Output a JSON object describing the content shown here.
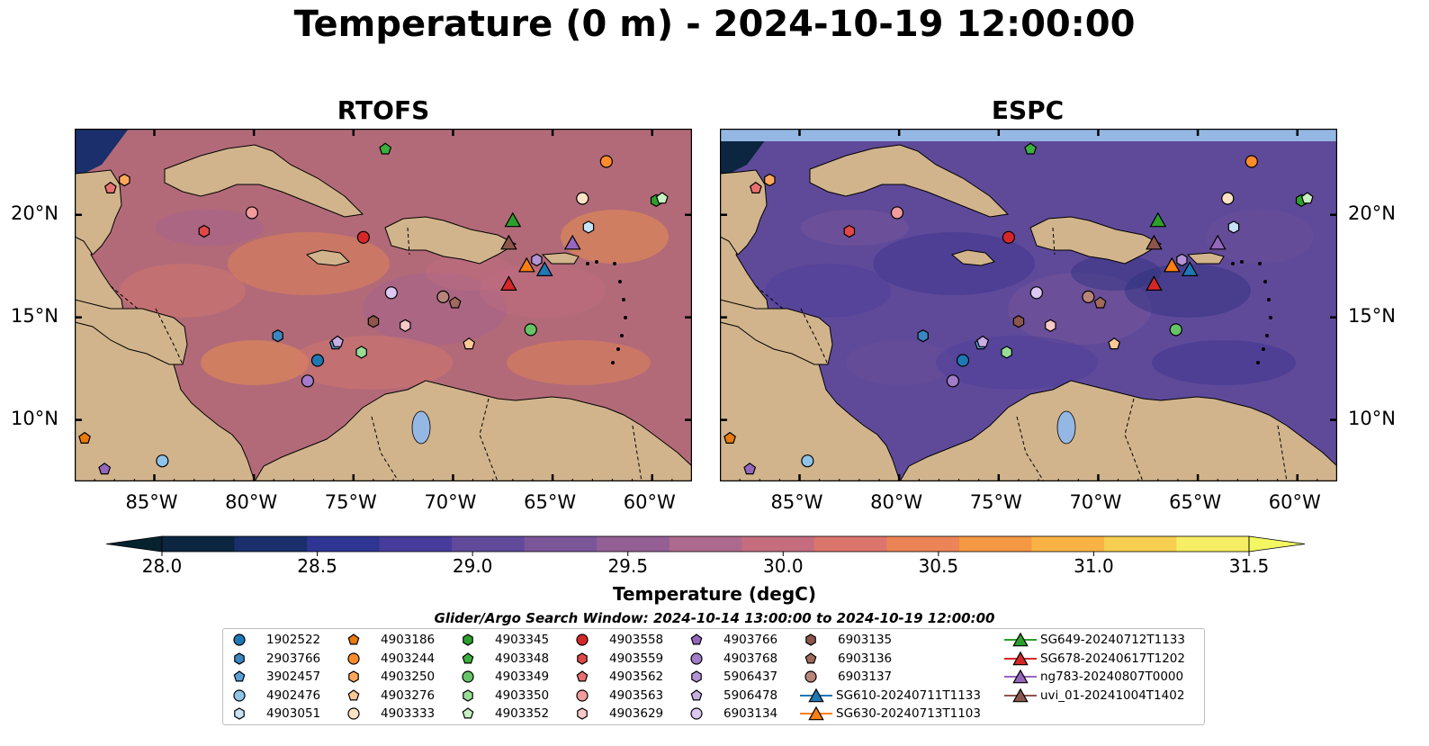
{
  "title": "Temperature (0 m) - 2024-10-19 12:00:00",
  "panels": [
    {
      "title": "RTOFS",
      "ocean_color": "#b26a79",
      "blank_top": false
    },
    {
      "title": "ESPC",
      "ocean_color": "#5f4a9a",
      "blank_top": true
    }
  ],
  "axes": {
    "lon_ticks": [
      "85°W",
      "80°W",
      "75°W",
      "70°W",
      "65°W",
      "60°W"
    ],
    "lat_ticks": [
      "20°N",
      "15°N",
      "10°N"
    ]
  },
  "colorbar": {
    "label": "Temperature (degC)",
    "ticks": [
      "28.0",
      "28.5",
      "29.0",
      "29.5",
      "30.0",
      "30.5",
      "31.0",
      "31.5"
    ],
    "colors": [
      "#0c2540",
      "#1a2f6b",
      "#2f3592",
      "#473c9b",
      "#614a9a",
      "#7a5699",
      "#945f95",
      "#ad6a8c",
      "#c56d7f",
      "#dc766d",
      "#ec8457",
      "#f59843",
      "#f9b344",
      "#f6cf50",
      "#f6ee64"
    ],
    "min_color": "#07222f",
    "max_color": "#f3f762"
  },
  "legend": {
    "title": "Glider/Argo Search Window: 2024-10-14 13:00:00 to 2024-10-19 12:00:00",
    "entries": [
      {
        "label": "1902522",
        "marker": "circle",
        "color": "#1f77b4"
      },
      {
        "label": "2903766",
        "marker": "hexagon",
        "color": "#3b86c0"
      },
      {
        "label": "3902457",
        "marker": "pentagon",
        "color": "#5aa0d8"
      },
      {
        "label": "4902476",
        "marker": "circle",
        "color": "#8fc3ea"
      },
      {
        "label": "4903051",
        "marker": "hexagon",
        "color": "#c6e2f6"
      },
      {
        "label": "4903186",
        "marker": "pentagon",
        "color": "#e87b0c"
      },
      {
        "label": "4903244",
        "marker": "circle",
        "color": "#ff8c2a"
      },
      {
        "label": "4903250",
        "marker": "hexagon",
        "color": "#ffa85c"
      },
      {
        "label": "4903276",
        "marker": "pentagon",
        "color": "#ffc996"
      },
      {
        "label": "4903333",
        "marker": "circle",
        "color": "#ffe2c4"
      },
      {
        "label": "4903345",
        "marker": "hexagon",
        "color": "#2ca02c"
      },
      {
        "label": "4903348",
        "marker": "pentagon",
        "color": "#3cb03c"
      },
      {
        "label": "4903349",
        "marker": "circle",
        "color": "#66c466"
      },
      {
        "label": "4903350",
        "marker": "hexagon",
        "color": "#98dc98"
      },
      {
        "label": "4903352",
        "marker": "pentagon",
        "color": "#c8f0c0"
      },
      {
        "label": "4903558",
        "marker": "circle",
        "color": "#d62728"
      },
      {
        "label": "4903559",
        "marker": "hexagon",
        "color": "#e04848"
      },
      {
        "label": "4903562",
        "marker": "pentagon",
        "color": "#ea7070"
      },
      {
        "label": "4903563",
        "marker": "circle",
        "color": "#f29c9c"
      },
      {
        "label": "4903629",
        "marker": "hexagon",
        "color": "#fbc8c8"
      },
      {
        "label": "4903766",
        "marker": "pentagon",
        "color": "#9467bd"
      },
      {
        "label": "4903768",
        "marker": "circle",
        "color": "#a27cc8"
      },
      {
        "label": "5906437",
        "marker": "hexagon",
        "color": "#b494d4"
      },
      {
        "label": "5906478",
        "marker": "pentagon",
        "color": "#c8aee2"
      },
      {
        "label": "6903134",
        "marker": "circle",
        "color": "#dcc8f0"
      },
      {
        "label": "6903135",
        "marker": "hexagon",
        "color": "#8c564b"
      },
      {
        "label": "6903136",
        "marker": "pentagon",
        "color": "#a06a5c"
      },
      {
        "label": "6903137",
        "marker": "circle",
        "color": "#b8857a"
      },
      {
        "label": "SG610-20240711T1133",
        "marker": "triangle",
        "color": "#1f77b4"
      },
      {
        "label": "SG630-20240713T1103",
        "marker": "triangle",
        "color": "#ff7f0e"
      },
      {
        "label": "SG649-20240712T1133",
        "marker": "triangle",
        "color": "#2ca02c"
      },
      {
        "label": "SG678-20240617T1202",
        "marker": "triangle",
        "color": "#d62728"
      },
      {
        "label": "ng783-20240807T0000",
        "marker": "triangle",
        "color": "#9467bd"
      },
      {
        "label": "uvi_01-20241004T1402",
        "marker": "triangle",
        "color": "#8c564b"
      }
    ]
  },
  "stations": [
    {
      "id": "1902522",
      "lon": -76.8,
      "lat": 12.9
    },
    {
      "id": "2903766",
      "lon": -78.8,
      "lat": 14.1
    },
    {
      "id": "3902457",
      "lon": -75.9,
      "lat": 13.7
    },
    {
      "id": "4902476",
      "lon": -84.6,
      "lat": 8.0
    },
    {
      "id": "4903051",
      "lon": -63.2,
      "lat": 19.4
    },
    {
      "id": "4903186",
      "lon": -88.5,
      "lat": 9.1
    },
    {
      "id": "4903244",
      "lon": -62.3,
      "lat": 22.6
    },
    {
      "id": "4903250",
      "lon": -86.5,
      "lat": 21.7
    },
    {
      "id": "4903276",
      "lon": -69.2,
      "lat": 13.7
    },
    {
      "id": "4903333",
      "lon": -63.5,
      "lat": 20.8
    },
    {
      "id": "4903345",
      "lon": -59.8,
      "lat": 20.7
    },
    {
      "id": "4903348",
      "lon": -73.4,
      "lat": 23.2
    },
    {
      "id": "4903349",
      "lon": -66.1,
      "lat": 14.4
    },
    {
      "id": "4903350",
      "lon": -74.6,
      "lat": 13.3
    },
    {
      "id": "4903352",
      "lon": -59.5,
      "lat": 20.8
    },
    {
      "id": "4903558",
      "lon": -74.5,
      "lat": 18.9
    },
    {
      "id": "4903559",
      "lon": -82.5,
      "lat": 19.2
    },
    {
      "id": "4903562",
      "lon": -87.2,
      "lat": 21.3
    },
    {
      "id": "4903563",
      "lon": -80.1,
      "lat": 20.1
    },
    {
      "id": "4903629",
      "lon": -72.4,
      "lat": 14.6
    },
    {
      "id": "4903766",
      "lon": -87.5,
      "lat": 7.6
    },
    {
      "id": "4903768",
      "lon": -77.3,
      "lat": 11.9
    },
    {
      "id": "5906437",
      "lon": -65.8,
      "lat": 17.8
    },
    {
      "id": "5906478",
      "lon": -75.8,
      "lat": 13.8
    },
    {
      "id": "6903134",
      "lon": -73.1,
      "lat": 16.2
    },
    {
      "id": "6903135",
      "lon": -74.0,
      "lat": 14.8
    },
    {
      "id": "6903136",
      "lon": -69.9,
      "lat": 15.7
    },
    {
      "id": "6903137",
      "lon": -70.5,
      "lat": 16.0
    },
    {
      "id": "SG610-20240711T1133",
      "lon": -65.4,
      "lat": 17.3
    },
    {
      "id": "SG630-20240713T1103",
      "lon": -66.3,
      "lat": 17.5
    },
    {
      "id": "SG649-20240712T1133",
      "lon": -67.0,
      "lat": 19.7
    },
    {
      "id": "SG678-20240617T1202",
      "lon": -67.2,
      "lat": 16.6
    },
    {
      "id": "ng783-20240807T0000",
      "lon": -64.0,
      "lat": 18.6
    },
    {
      "id": "uvi_01-20241004T1402",
      "lon": -67.2,
      "lat": 18.6
    }
  ]
}
